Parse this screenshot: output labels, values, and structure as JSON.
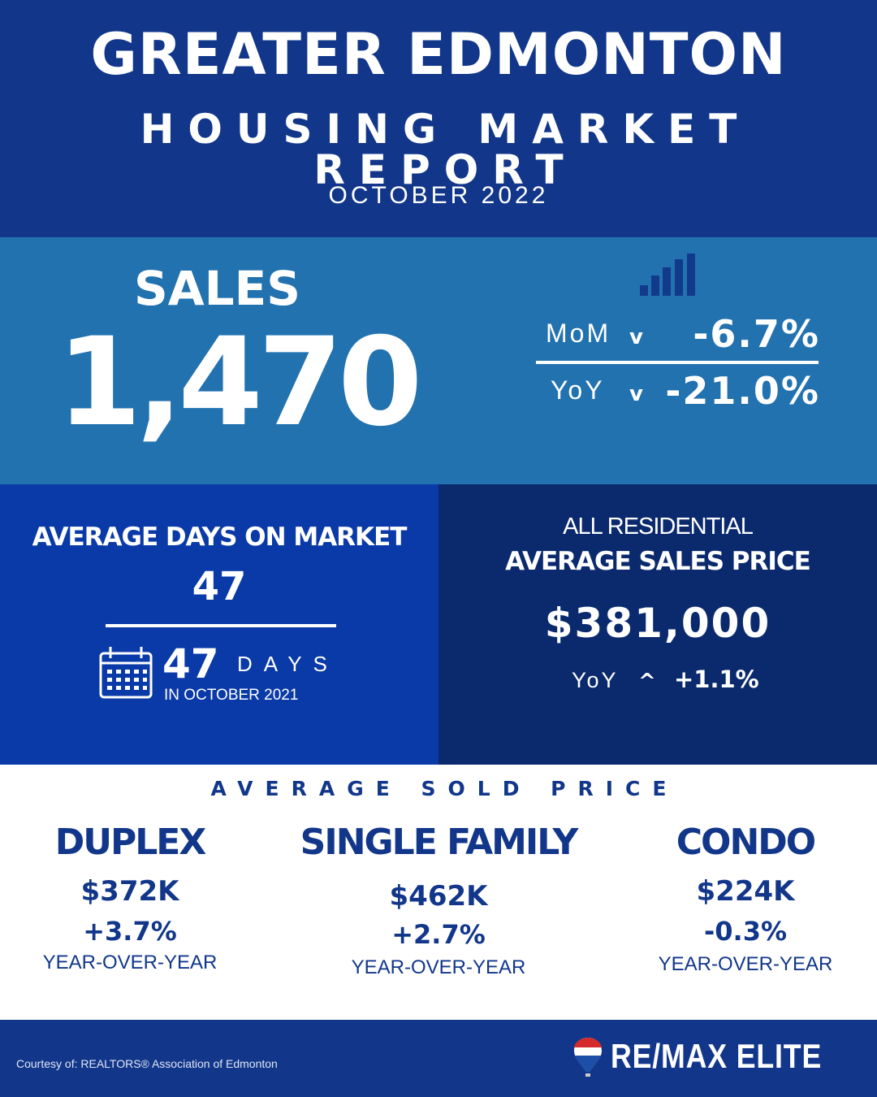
{
  "header": {
    "title_line1": "GREATER EDMONTON",
    "title_line2": "HOUSING MARKET REPORT",
    "period": "OCTOBER 2022"
  },
  "sales": {
    "label": "SALES",
    "value": "1,470",
    "icon": "bar-chart-icon",
    "mom": {
      "label": "MoM",
      "direction": "down",
      "arrow": "v",
      "value": "-6.7%"
    },
    "yoy": {
      "label": "YoY",
      "direction": "down",
      "arrow": "v",
      "value": "-21.0%"
    }
  },
  "days_on_market": {
    "title": "AVERAGE DAYS ON MARKET",
    "value": "47",
    "icon": "calendar-icon",
    "prior_value": "47",
    "prior_unit": "DAYS",
    "prior_period": "IN OCTOBER 2021"
  },
  "avg_price": {
    "line1": "ALL RESIDENTIAL",
    "line2": "AVERAGE SALES PRICE",
    "value": "$381,000",
    "yoy_label": "YoY",
    "yoy_direction": "up",
    "yoy_arrow": "^",
    "yoy_value": "+1.1%"
  },
  "sold_price": {
    "title": "AVERAGE SOLD PRICE",
    "columns": [
      {
        "name": "DUPLEX",
        "price": "$372K",
        "change": "+3.7%",
        "note": "YEAR-OVER-YEAR"
      },
      {
        "name": "SINGLE FAMILY",
        "price": "$462K",
        "change": "+2.7%",
        "note": "YEAR-OVER-YEAR"
      },
      {
        "name": "CONDO",
        "price": "$224K",
        "change": "-0.3%",
        "note": "YEAR-OVER-YEAR"
      }
    ]
  },
  "footer": {
    "credit": "Courtesy of: REALTORS® Association of Edmonton",
    "logo_text": "RE/MAX ELITE",
    "logo_balloon_text": "RE/MAX"
  },
  "colors": {
    "header": "#12378a",
    "sales_band": "#2272b0",
    "dom_panel": "#0a3aa8",
    "price_panel": "#0b2a6e",
    "text_dark": "#12378a"
  }
}
